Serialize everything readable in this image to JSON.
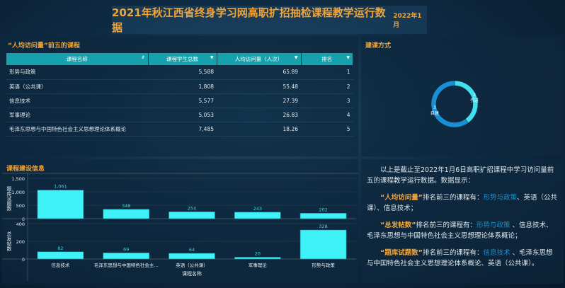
{
  "header": {
    "title": "2021年秋江西省终身学习网高职扩招抽检课程教学运行数据",
    "date": "2022年1月"
  },
  "top_table": {
    "title": "“人均访问量”前五的课程",
    "columns": [
      "课程名称",
      "课程学生总数",
      "人均访问量（人次）",
      "排名"
    ],
    "rows": [
      [
        "形势与政策",
        "5,588",
        "65.89",
        "1"
      ],
      [
        "英语（公共课）",
        "1,808",
        "55.48",
        "2"
      ],
      [
        "信息技术",
        "5,577",
        "27.39",
        "3"
      ],
      [
        "军事理论",
        "5,053",
        "26.83",
        "4"
      ],
      [
        "毛泽东思想与中国特色社会主义思想理论体系概论",
        "7,485",
        "18.26",
        "5"
      ]
    ]
  },
  "donut": {
    "title": "建课方式",
    "slices": [
      {
        "label": "引进",
        "value": 2,
        "color": "#3fe0f0"
      },
      {
        "label": "自建",
        "value": 3,
        "color": "#1a8fd6"
      }
    ]
  },
  "chart_data": {
    "type": "bar",
    "title": "课程建设信息",
    "xlabel": "课程名称",
    "categories": [
      "信息技术",
      "毛泽东思想与中国特色社会主...",
      "英语（公共课）",
      "军事理论",
      "形势与政策"
    ],
    "series": [
      {
        "name": "题库试题数",
        "values": [
          1061,
          348,
          254,
          243,
          202
        ],
        "ylim": [
          0,
          1500
        ],
        "ticks": [
          "1,500",
          "1,000",
          "500",
          "0"
        ],
        "labels": [
          "1,061",
          "348",
          "254",
          "243",
          "202"
        ]
      },
      {
        "name": "总发帖数",
        "values": [
          82,
          69,
          64,
          20,
          328
        ],
        "ylim": [
          0,
          400
        ],
        "ticks": [
          "400",
          "200",
          "0"
        ],
        "labels": [
          "82",
          "69",
          "64",
          "20",
          "328"
        ]
      }
    ],
    "bar_color": "#3ff2f8",
    "grid": true
  },
  "summary": {
    "intro": "以上是截止至2022年1月6日高职扩招课程中学习访问量前五的课程教学运行数据。数据显示：",
    "p1": {
      "key": "“人均访问量”",
      "mid": "排名前三的课程有：",
      "link": "形势与政策",
      "rest": "、英语（公共课）、信息技术；"
    },
    "p2": {
      "key": "“总发帖数”",
      "mid": "排名前三的课程有：",
      "link": "形势与政策",
      "rest": " 、信息技术、毛泽东思想与中国特色社会主义思想理论体系概论；"
    },
    "p3": {
      "key": "“题库试题数”",
      "mid": "排名前三的课程有：",
      "link": "信息技术",
      "rest": " 、毛泽东思想与中国特色社会主义思想理论体系概论、英语（公共课）。"
    }
  }
}
